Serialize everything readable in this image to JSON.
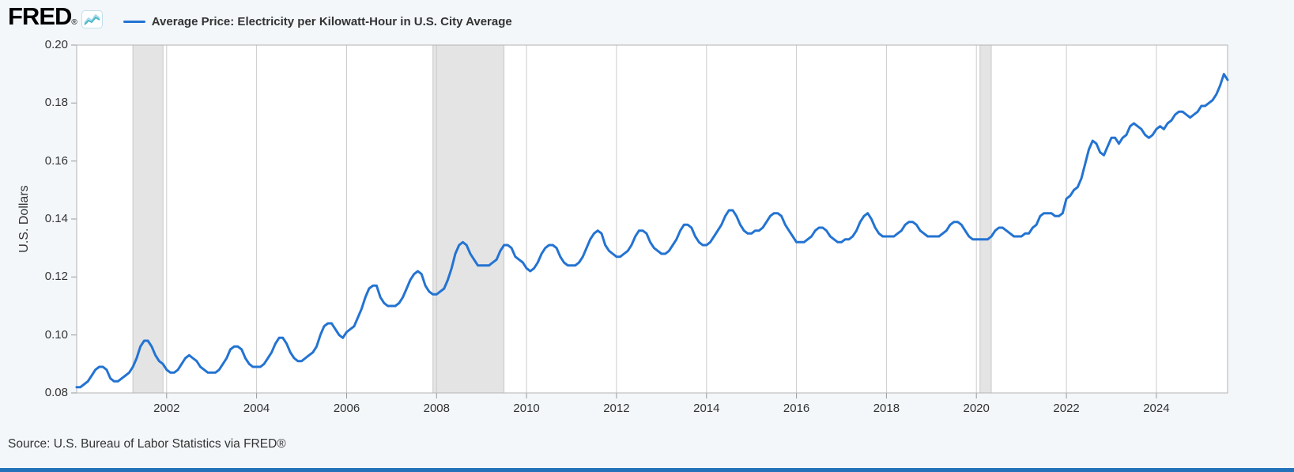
{
  "header": {
    "logo": "FRED",
    "registered": "®",
    "legend_label": "Average Price: Electricity per Kilowatt-Hour in U.S. City Average"
  },
  "footer": {
    "source": "Source: U.S. Bureau of Labor Statistics via FRED®"
  },
  "colors": {
    "line": "#2373d2",
    "recession": "#e4e4e4",
    "recession_edge": "#c9c9c9",
    "grid": "#cccccc",
    "border": "#b3b3b3",
    "tick": "#999999",
    "bottom_bar": "#2172b8",
    "icon_teal": "#49b8c4",
    "icon_blue": "#a8d9f0"
  },
  "chart_data": {
    "type": "line",
    "title": "Average Price: Electricity per Kilowatt-Hour in U.S. City Average",
    "xlabel": "",
    "ylabel": "U.S. Dollars",
    "ylim": [
      0.08,
      0.2
    ],
    "y_ticks": [
      0.08,
      0.1,
      0.12,
      0.14,
      0.16,
      0.18,
      0.2
    ],
    "x_ticks": [
      2002,
      2004,
      2006,
      2008,
      2010,
      2012,
      2014,
      2016,
      2018,
      2020,
      2022,
      2024
    ],
    "grid": "vertical-only",
    "legend_position": "top",
    "recessions": [
      [
        2001.25,
        2001.92
      ],
      [
        2007.92,
        2009.5
      ],
      [
        2020.08,
        2020.33
      ]
    ],
    "series": [
      {
        "name": "Average Price: Electricity per Kilowatt-Hour in U.S. City Average",
        "units": "U.S. Dollars",
        "frequency": "monthly",
        "start_year": 2000,
        "start_month": 1,
        "values": [
          0.082,
          0.082,
          0.083,
          0.084,
          0.086,
          0.088,
          0.089,
          0.089,
          0.088,
          0.085,
          0.084,
          0.084,
          0.085,
          0.086,
          0.087,
          0.089,
          0.092,
          0.096,
          0.098,
          0.098,
          0.096,
          0.093,
          0.091,
          0.09,
          0.088,
          0.087,
          0.087,
          0.088,
          0.09,
          0.092,
          0.093,
          0.092,
          0.091,
          0.089,
          0.088,
          0.087,
          0.087,
          0.087,
          0.088,
          0.09,
          0.092,
          0.095,
          0.096,
          0.096,
          0.095,
          0.092,
          0.09,
          0.089,
          0.089,
          0.089,
          0.09,
          0.092,
          0.094,
          0.097,
          0.099,
          0.099,
          0.097,
          0.094,
          0.092,
          0.091,
          0.091,
          0.092,
          0.093,
          0.094,
          0.096,
          0.1,
          0.103,
          0.104,
          0.104,
          0.102,
          0.1,
          0.099,
          0.101,
          0.102,
          0.103,
          0.106,
          0.109,
          0.113,
          0.116,
          0.117,
          0.117,
          0.113,
          0.111,
          0.11,
          0.11,
          0.11,
          0.111,
          0.113,
          0.116,
          0.119,
          0.121,
          0.122,
          0.121,
          0.117,
          0.115,
          0.114,
          0.114,
          0.115,
          0.116,
          0.119,
          0.123,
          0.128,
          0.131,
          0.132,
          0.131,
          0.128,
          0.126,
          0.124,
          0.124,
          0.124,
          0.124,
          0.125,
          0.126,
          0.129,
          0.131,
          0.131,
          0.13,
          0.127,
          0.126,
          0.125,
          0.123,
          0.122,
          0.123,
          0.125,
          0.128,
          0.13,
          0.131,
          0.131,
          0.13,
          0.127,
          0.125,
          0.124,
          0.124,
          0.124,
          0.125,
          0.127,
          0.13,
          0.133,
          0.135,
          0.136,
          0.135,
          0.131,
          0.129,
          0.128,
          0.127,
          0.127,
          0.128,
          0.129,
          0.131,
          0.134,
          0.136,
          0.136,
          0.135,
          0.132,
          0.13,
          0.129,
          0.128,
          0.128,
          0.129,
          0.131,
          0.133,
          0.136,
          0.138,
          0.138,
          0.137,
          0.134,
          0.132,
          0.131,
          0.131,
          0.132,
          0.134,
          0.136,
          0.138,
          0.141,
          0.143,
          0.143,
          0.141,
          0.138,
          0.136,
          0.135,
          0.135,
          0.136,
          0.136,
          0.137,
          0.139,
          0.141,
          0.142,
          0.142,
          0.141,
          0.138,
          0.136,
          0.134,
          0.132,
          0.132,
          0.132,
          0.133,
          0.134,
          0.136,
          0.137,
          0.137,
          0.136,
          0.134,
          0.133,
          0.132,
          0.132,
          0.133,
          0.133,
          0.134,
          0.136,
          0.139,
          0.141,
          0.142,
          0.14,
          0.137,
          0.135,
          0.134,
          0.134,
          0.134,
          0.134,
          0.135,
          0.136,
          0.138,
          0.139,
          0.139,
          0.138,
          0.136,
          0.135,
          0.134,
          0.134,
          0.134,
          0.134,
          0.135,
          0.136,
          0.138,
          0.139,
          0.139,
          0.138,
          0.136,
          0.134,
          0.133,
          0.133,
          0.133,
          0.133,
          0.133,
          0.134,
          0.136,
          0.137,
          0.137,
          0.136,
          0.135,
          0.134,
          0.134,
          0.134,
          0.135,
          0.135,
          0.137,
          0.138,
          0.141,
          0.142,
          0.142,
          0.142,
          0.141,
          0.141,
          0.142,
          0.147,
          0.148,
          0.15,
          0.151,
          0.154,
          0.159,
          0.164,
          0.167,
          0.166,
          0.163,
          0.162,
          0.165,
          0.168,
          0.168,
          0.166,
          0.168,
          0.169,
          0.172,
          0.173,
          0.172,
          0.171,
          0.169,
          0.168,
          0.169,
          0.171,
          0.172,
          0.171,
          0.173,
          0.174,
          0.176,
          0.177,
          0.177,
          0.176,
          0.175,
          0.176,
          0.177,
          0.179,
          0.179,
          0.18,
          0.181,
          0.183,
          0.186,
          0.19,
          0.188
        ]
      }
    ]
  }
}
